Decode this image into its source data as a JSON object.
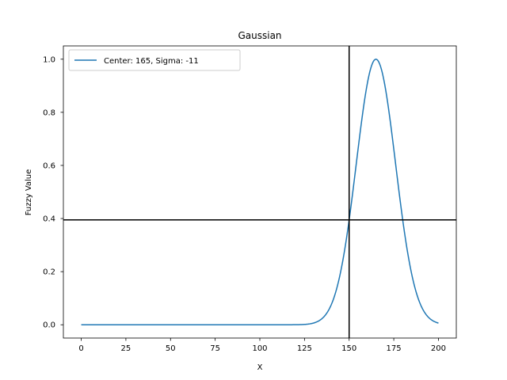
{
  "chart_data": {
    "type": "line",
    "title": "Gaussian",
    "xlabel": "X",
    "ylabel": "Fuzzy Value",
    "xlim": [
      -10,
      210
    ],
    "ylim": [
      -0.05,
      1.05
    ],
    "xticks": [
      0,
      25,
      50,
      75,
      100,
      125,
      150,
      175,
      200
    ],
    "xtick_labels": [
      "0",
      "25",
      "50",
      "75",
      "100",
      "125",
      "150",
      "175",
      "200"
    ],
    "yticks": [
      0.0,
      0.2,
      0.4,
      0.6,
      0.8,
      1.0
    ],
    "ytick_labels": [
      "0.0",
      "0.2",
      "0.4",
      "0.6",
      "0.8",
      "1.0"
    ],
    "grid": false,
    "legend_position": "upper-left",
    "series": [
      {
        "name": "Center: 165, Sigma: -11",
        "color": "#1f77b4",
        "function": "gaussian",
        "center": 165,
        "sigma": -11,
        "x_range": [
          0,
          200
        ]
      }
    ],
    "reference_lines": {
      "vertical_x": 150,
      "horizontal_y": 0.395,
      "color": "#000000"
    }
  }
}
